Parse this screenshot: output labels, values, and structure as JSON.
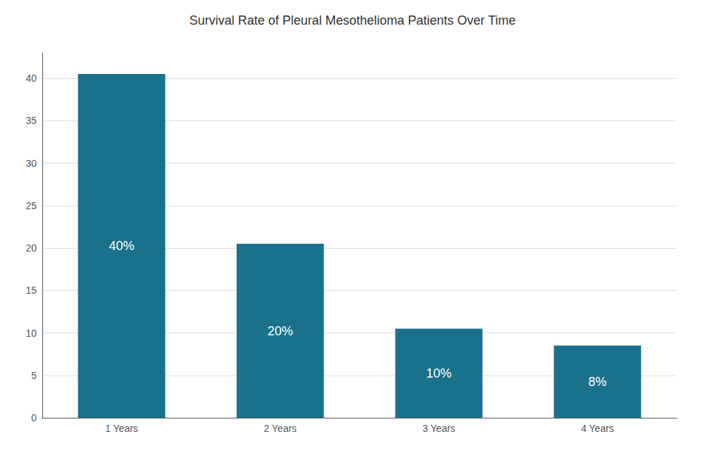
{
  "chart_data": {
    "type": "bar",
    "title": "Survival Rate of Pleural Mesothelioma Patients Over Time",
    "categories": [
      "1 Years",
      "2 Years",
      "3 Years",
      "4 Years"
    ],
    "values": [
      40.5,
      20.5,
      10.5,
      8.5
    ],
    "value_labels": [
      "40%",
      "20%",
      "10%",
      "8%"
    ],
    "data_labels": true,
    "color": "#1a718c",
    "ylim": [
      0,
      43
    ],
    "yticks": [
      0,
      5,
      10,
      15,
      20,
      25,
      30,
      35,
      40
    ],
    "grid": true
  }
}
